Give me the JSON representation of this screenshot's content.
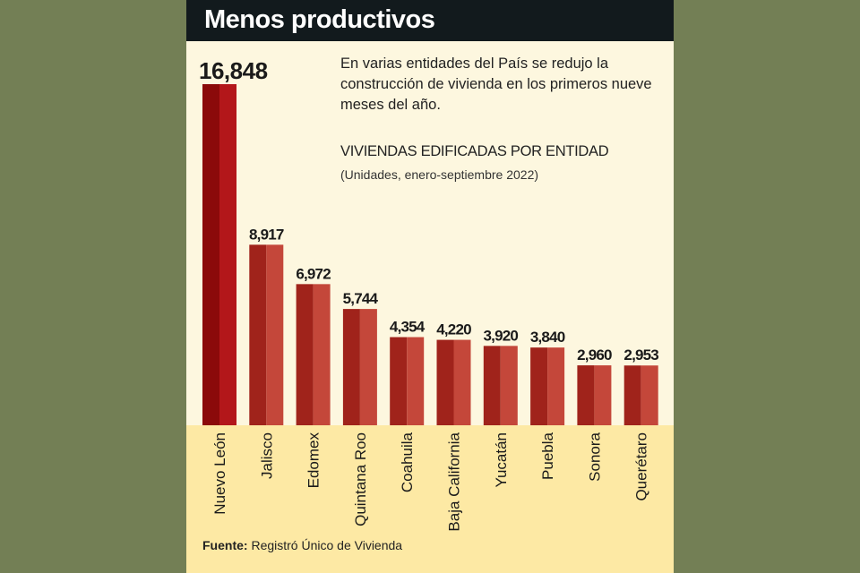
{
  "header": {
    "title": "Menos productivos"
  },
  "intro": "En varias entidades del País se redujo la construcción de vivienda en los primeros nueve meses del año.",
  "source": {
    "label": "Fuente:",
    "text": "Registró Único de Vivienda"
  },
  "chart_data": {
    "type": "bar",
    "title": "VIVIENDAS EDIFICADAS POR ENTIDAD",
    "subtitle": "(Unidades, enero-septiembre 2022)",
    "categories": [
      "Nuevo León",
      "Jalisco",
      "Edomex",
      "Quintana Roo",
      "Coahuila",
      "Baja California",
      "Yucatán",
      "Puebla",
      "Sonora",
      "Querétaro"
    ],
    "values": [
      16848,
      8917,
      6972,
      5744,
      4354,
      4220,
      3920,
      3840,
      2960,
      2953
    ],
    "value_labels": [
      "16,848",
      "8,917",
      "6,972",
      "5,744",
      "4,354",
      "4,220",
      "3,920",
      "3,840",
      "2,960",
      "2,953"
    ],
    "xlabel": "",
    "ylabel": "",
    "ylim": [
      0,
      16848
    ],
    "colors": {
      "highlight_dark": "#8b0a0a",
      "highlight_light": "#b3171a",
      "bar_dark": "#a0231b",
      "bar_light": "#c4473a"
    }
  }
}
